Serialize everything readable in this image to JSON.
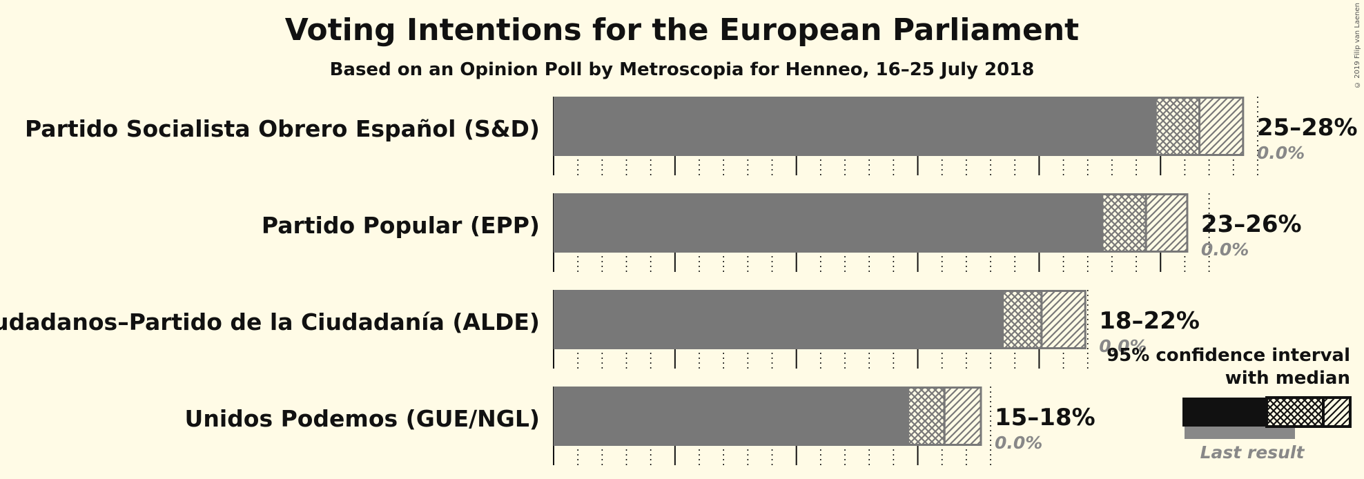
{
  "title": "Voting Intentions for the European Parliament",
  "subtitle": "Based on an Opinion Poll by Metroscopia for Henneo, 16–25 July 2018",
  "copyright": "© 2019 Filip van Laenen",
  "chart_data": {
    "type": "bar",
    "orientation": "horizontal",
    "x_unit": "%",
    "categories": [
      "Partido Socialista Obrero Español (S&D)",
      "Partido Popular (EPP)",
      "Ciudadanos–Partido de la Ciudadanía (ALDE)",
      "Unidos Podemos (GUE/NGL)"
    ],
    "series": [
      {
        "name": "95% confidence interval low",
        "values": [
          24.8,
          22.6,
          18.5,
          14.6
        ]
      },
      {
        "name": "median",
        "values": [
          26.6,
          24.4,
          20.1,
          16.1
        ]
      },
      {
        "name": "95% confidence interval high",
        "values": [
          28.4,
          26.1,
          21.9,
          17.6
        ]
      },
      {
        "name": "Last result",
        "values": [
          0.0,
          0.0,
          0.0,
          0.0
        ]
      }
    ],
    "range_labels": [
      "25–28%",
      "23–26%",
      "18–22%",
      "15–18%"
    ],
    "last_result_labels": [
      "0.0%",
      "0.0%",
      "0.0%",
      "0.0%"
    ],
    "xlim": [
      0,
      30
    ],
    "major_grid_step": 5,
    "minor_grid_step": 1,
    "grid": true,
    "colors": {
      "bar": "#787878",
      "interval_border": "#787878",
      "last_result": "#888888",
      "grid": "#111111",
      "background": "#fffbe6"
    },
    "legend": {
      "line1": "95% confidence interval",
      "line2": "with median",
      "last_result": "Last result",
      "position": "bottom-right"
    }
  }
}
